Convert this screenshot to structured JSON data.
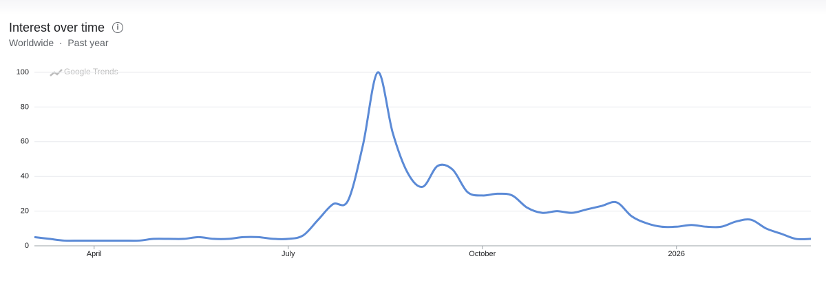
{
  "title": "Interest over time",
  "subtitle": [
    "Worldwide",
    "Past year"
  ],
  "watermark": "Google Trends",
  "chart_data": {
    "type": "line",
    "color": "#5b8ad6",
    "grid": true,
    "categories": [
      "",
      "",
      "",
      "",
      "April",
      "",
      "",
      "",
      "",
      "",
      "",
      "",
      "",
      "",
      "",
      "",
      "",
      "July",
      "",
      "",
      "",
      "",
      "",
      "",
      "",
      "",
      "",
      "",
      "",
      "",
      "October",
      "",
      "",
      "",
      "",
      "",
      "",
      "",
      "",
      "",
      "",
      "",
      "",
      "2026",
      "",
      "",
      "",
      "",
      "",
      "",
      "",
      "",
      ""
    ],
    "values": [
      5,
      4,
      3,
      3,
      3,
      3,
      3,
      3,
      4,
      4,
      4,
      5,
      4,
      4,
      5,
      5,
      4,
      4,
      6,
      15,
      24,
      26,
      58,
      100,
      65,
      42,
      34,
      46,
      44,
      31,
      29,
      30,
      29,
      22,
      19,
      20,
      19,
      21,
      23,
      25,
      17,
      13,
      11,
      11,
      12,
      11,
      11,
      14,
      15,
      10,
      7,
      4,
      4
    ],
    "ylim": [
      0,
      100
    ],
    "yticks": [
      0,
      20,
      40,
      60,
      80,
      100
    ]
  }
}
